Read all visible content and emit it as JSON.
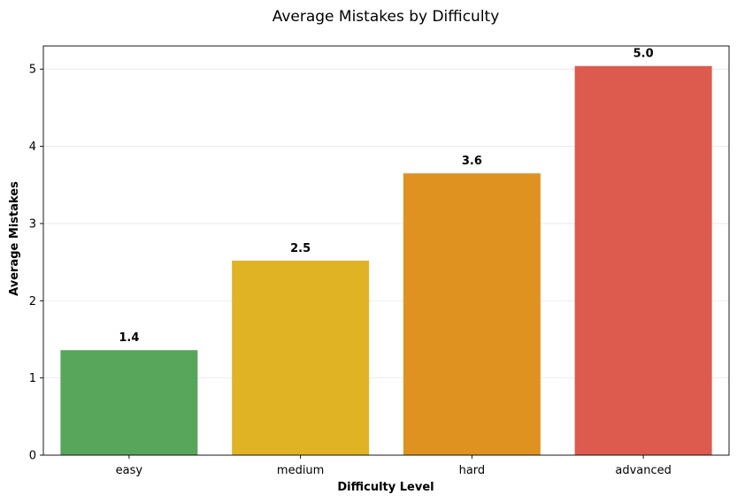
{
  "chart_data": {
    "type": "bar",
    "title": "Average Mistakes by Difficulty",
    "xlabel": "Difficulty Level",
    "ylabel": "Average Mistakes",
    "categories": [
      "easy",
      "medium",
      "hard",
      "advanced"
    ],
    "values": [
      1.36,
      2.52,
      3.65,
      5.04
    ],
    "data_labels": [
      "1.4",
      "2.5",
      "3.6",
      "5.0"
    ],
    "colors": [
      "#58a55c",
      "#e0b325",
      "#df9220",
      "#dd5a4e"
    ],
    "ylim": [
      0,
      5.3
    ],
    "yticks": [
      0,
      1,
      2,
      3,
      4,
      5
    ],
    "grid": "horizontal"
  }
}
